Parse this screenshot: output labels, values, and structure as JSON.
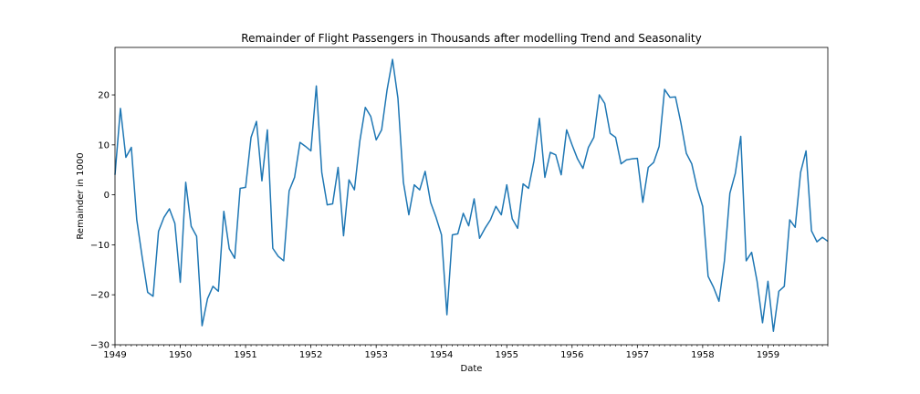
{
  "chart_data": {
    "type": "line",
    "title": "Remainder of Flight Passengers in Thousands after modelling Trend and Seasonality",
    "xlabel": "Date",
    "ylabel": "Remainder in 1000",
    "xlim": [
      "1949-01",
      "1959-12"
    ],
    "ylim": [
      -30,
      29.5
    ],
    "grid": false,
    "line_color": "#1f77b4",
    "x_ticks": [
      "1949",
      "1950",
      "1951",
      "1952",
      "1953",
      "1954",
      "1955",
      "1956",
      "1957",
      "1958",
      "1959"
    ],
    "y_ticks": [
      -30,
      -20,
      -10,
      0,
      10,
      20
    ],
    "series": [
      {
        "start": "1949-01",
        "frequency": "monthly",
        "values": [
          4,
          17.3,
          7.5,
          9.5,
          -5,
          -12.5,
          -19.5,
          -20.3,
          -7.3,
          -4.5,
          -2.8,
          -5.7,
          -17.5,
          2.5,
          -6.3,
          -8.3,
          -26.2,
          -20.8,
          -18.3,
          -19.3,
          -3.3,
          -10.8,
          -12.7,
          1.3,
          1.5,
          11.5,
          14.7,
          2.8,
          13,
          -10.7,
          -12.3,
          -13.2,
          0.8,
          3.5,
          10.5,
          9.7,
          8.8,
          21.8,
          4.5,
          -2,
          -1.8,
          5.5,
          -8.2,
          3,
          1,
          10.8,
          17.5,
          15.7,
          11,
          13,
          21,
          27.1,
          19.3,
          2.5,
          -4,
          2,
          1,
          4.7,
          -1.5,
          -4.5,
          -8,
          -24,
          -8,
          -7.8,
          -3.7,
          -6.2,
          -0.8,
          -8.7,
          -6.7,
          -5,
          -2.3,
          -4,
          2,
          -4.8,
          -6.7,
          2.2,
          1.3,
          6.8,
          15.3,
          3.5,
          8.5,
          8,
          4,
          13,
          10,
          7.2,
          5.3,
          9.5,
          11.5,
          20,
          18.3,
          12.3,
          11.5,
          6.2,
          7,
          7.2,
          7.3,
          -1.5,
          5.5,
          6.5,
          9.7,
          21.1,
          19.5,
          19.6,
          14.4,
          8.3,
          6.2,
          1.3,
          -2.3,
          -16.3,
          -18.5,
          -21.3,
          -13.2,
          0.3,
          4.3,
          11.7,
          -13.2,
          -11.5,
          -17.3,
          -25.6,
          -17.3,
          -27.3,
          -19.3,
          -18.3,
          -5,
          -6.5,
          4.5,
          8.8,
          -7.2,
          -9.4,
          -8.5,
          -9.3
        ]
      }
    ]
  }
}
